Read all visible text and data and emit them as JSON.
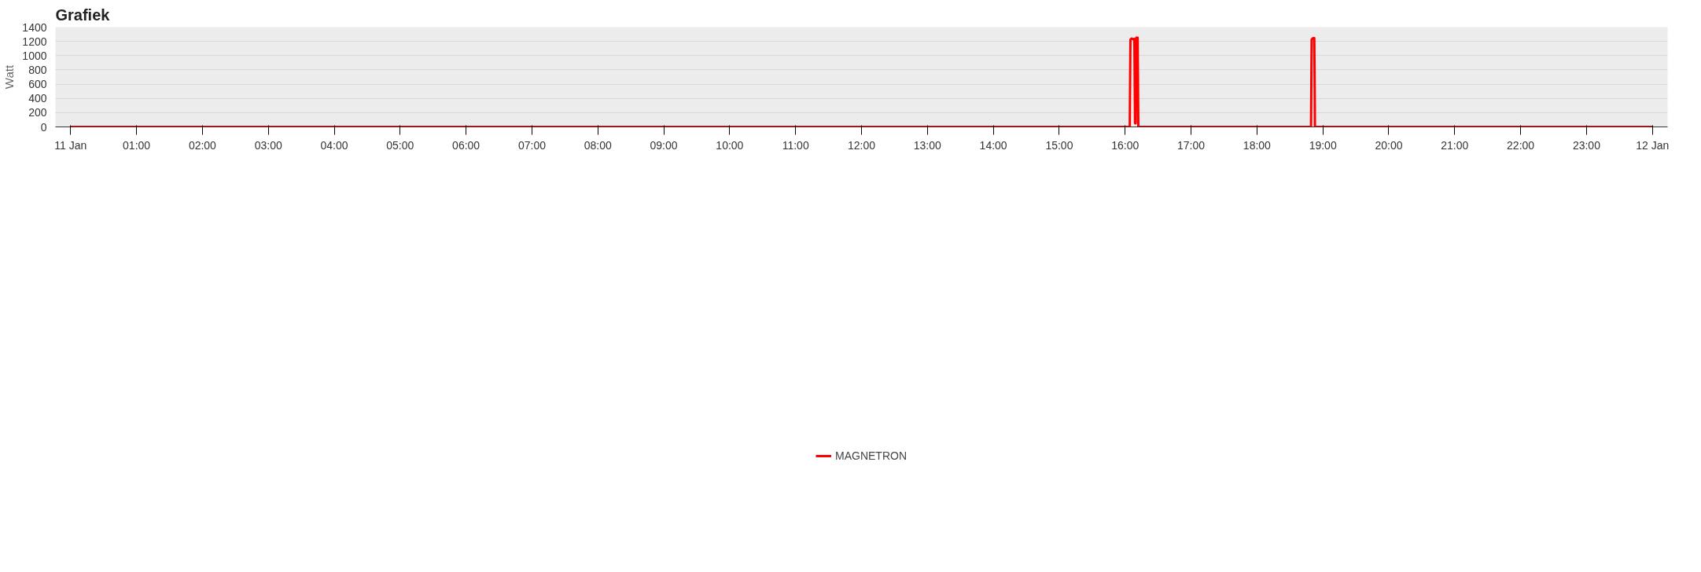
{
  "chart_data": {
    "type": "line",
    "title": "Grafiek",
    "ylabel": "Watt",
    "x": [
      0,
      16.07,
      16.08,
      16.1,
      16.12,
      16.14,
      16.15,
      16.16,
      16.17,
      16.19,
      16.2,
      18.82,
      18.83,
      18.85,
      18.87,
      18.88,
      24
    ],
    "series": [
      {
        "name": "MAGNETRON",
        "color": "#ff0000",
        "values": [
          0,
          0,
          1225,
          1240,
          1230,
          1235,
          50,
          50,
          1250,
          1250,
          0,
          0,
          1225,
          1245,
          1245,
          0,
          0
        ]
      }
    ],
    "xlim": [
      -0.23,
      24.23
    ],
    "xticks": [
      {
        "value": 0,
        "label": "11 Jan"
      },
      {
        "value": 1,
        "label": "01:00"
      },
      {
        "value": 2,
        "label": "02:00"
      },
      {
        "value": 3,
        "label": "03:00"
      },
      {
        "value": 4,
        "label": "04:00"
      },
      {
        "value": 5,
        "label": "05:00"
      },
      {
        "value": 6,
        "label": "06:00"
      },
      {
        "value": 7,
        "label": "07:00"
      },
      {
        "value": 8,
        "label": "08:00"
      },
      {
        "value": 9,
        "label": "09:00"
      },
      {
        "value": 10,
        "label": "10:00"
      },
      {
        "value": 11,
        "label": "11:00"
      },
      {
        "value": 12,
        "label": "12:00"
      },
      {
        "value": 13,
        "label": "13:00"
      },
      {
        "value": 14,
        "label": "14:00"
      },
      {
        "value": 15,
        "label": "15:00"
      },
      {
        "value": 16,
        "label": "16:00"
      },
      {
        "value": 17,
        "label": "17:00"
      },
      {
        "value": 18,
        "label": "18:00"
      },
      {
        "value": 19,
        "label": "19:00"
      },
      {
        "value": 20,
        "label": "20:00"
      },
      {
        "value": 21,
        "label": "21:00"
      },
      {
        "value": 22,
        "label": "22:00"
      },
      {
        "value": 23,
        "label": "23:00"
      },
      {
        "value": 24,
        "label": "12 Jan"
      }
    ],
    "ylim": [
      0,
      1400
    ],
    "yticks": [
      0,
      200,
      400,
      600,
      800,
      1000,
      1200,
      1400
    ],
    "grid": "y",
    "legend": "bottom",
    "marker": "none",
    "line_style": "solid"
  }
}
